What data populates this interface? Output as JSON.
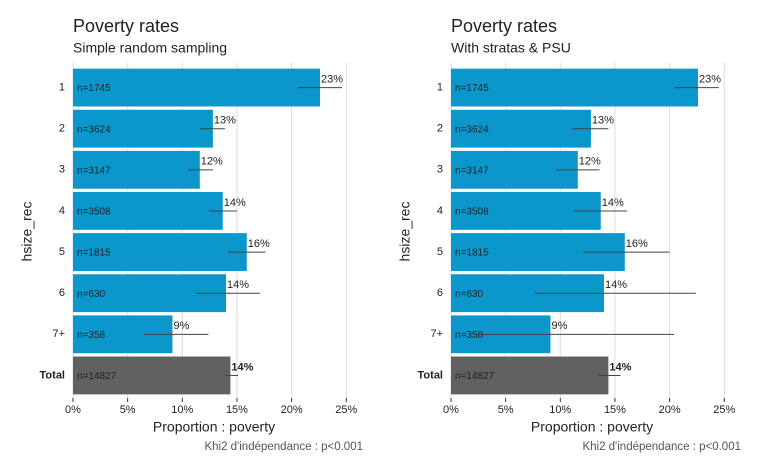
{
  "chart_data": [
    {
      "type": "bar",
      "title": "Poverty rates",
      "subtitle": "Simple random sampling",
      "ylabel": "hsize_rec",
      "xlabel": "Proportion : poverty",
      "caption": "Khi2 d'indépendance : p<0.001",
      "categories": [
        "1",
        "2",
        "3",
        "4",
        "5",
        "6",
        "7+",
        "Total"
      ],
      "values": [
        22.6,
        12.8,
        11.6,
        13.7,
        15.9,
        14.0,
        9.1,
        14.4
      ],
      "value_labels": [
        "23%",
        "13%",
        "12%",
        "14%",
        "16%",
        "14%",
        "9%",
        "14%"
      ],
      "n_labels": [
        "n=1745",
        "n=3624",
        "n=3147",
        "n=3508",
        "n=1815",
        "n=630",
        "n=358",
        "n=14827"
      ],
      "ci_low": [
        20.6,
        11.6,
        10.5,
        12.5,
        14.2,
        11.3,
        6.5,
        13.9
      ],
      "ci_high": [
        24.6,
        13.9,
        12.8,
        15.0,
        17.6,
        17.1,
        12.4,
        15.1
      ],
      "colors": [
        "#0b97cb",
        "#0b97cb",
        "#0b97cb",
        "#0b97cb",
        "#0b97cb",
        "#0b97cb",
        "#0b97cb",
        "#616161"
      ],
      "xlim": [
        0,
        25.8
      ],
      "xticks": [
        {
          "value": 0,
          "label": "0%"
        },
        {
          "value": 5,
          "label": "5%"
        },
        {
          "value": 10,
          "label": "10%"
        },
        {
          "value": 15,
          "label": "15%"
        },
        {
          "value": 20,
          "label": "20%"
        },
        {
          "value": 25,
          "label": "25%"
        }
      ],
      "grid": true
    },
    {
      "type": "bar",
      "title": "Poverty rates",
      "subtitle": "With stratas & PSU",
      "ylabel": "hsize_rec",
      "xlabel": "Proportion : poverty",
      "caption": "Khi2 d'indépendance : p<0.001",
      "categories": [
        "1",
        "2",
        "3",
        "4",
        "5",
        "6",
        "7+",
        "Total"
      ],
      "values": [
        22.6,
        12.8,
        11.6,
        13.7,
        15.9,
        14.0,
        9.1,
        14.4
      ],
      "value_labels": [
        "23%",
        "13%",
        "12%",
        "14%",
        "16%",
        "14%",
        "9%",
        "14%"
      ],
      "n_labels": [
        "n=1745",
        "n=3624",
        "n=3147",
        "n=3508",
        "n=1815",
        "n=630",
        "n=358",
        "n=14827"
      ],
      "ci_low": [
        20.5,
        11.1,
        9.6,
        11.3,
        12.1,
        7.7,
        2.2,
        13.4
      ],
      "ci_high": [
        24.5,
        14.4,
        13.6,
        16.1,
        20.0,
        22.4,
        20.4,
        15.5
      ],
      "colors": [
        "#0b97cb",
        "#0b97cb",
        "#0b97cb",
        "#0b97cb",
        "#0b97cb",
        "#0b97cb",
        "#0b97cb",
        "#616161"
      ],
      "xlim": [
        0,
        25.8
      ],
      "xticks": [
        {
          "value": 0,
          "label": "0%"
        },
        {
          "value": 5,
          "label": "5%"
        },
        {
          "value": 10,
          "label": "10%"
        },
        {
          "value": 15,
          "label": "15%"
        },
        {
          "value": 20,
          "label": "20%"
        },
        {
          "value": 25,
          "label": "25%"
        }
      ],
      "grid": true
    }
  ]
}
